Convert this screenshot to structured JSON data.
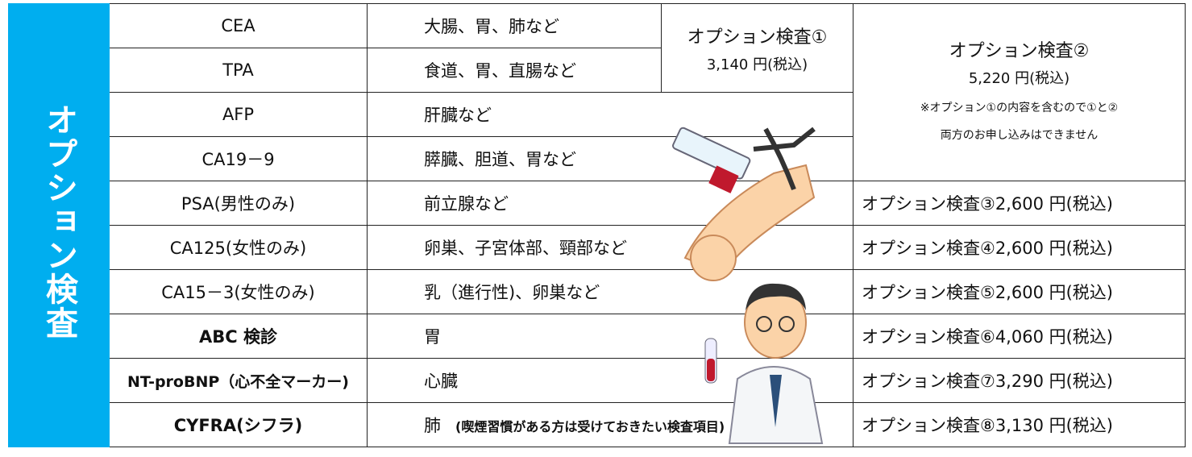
{
  "side_label": "オプション検査",
  "option1": {
    "title": "オプション検査①",
    "price": "3,140 円(税込)"
  },
  "option2": {
    "title": "オプション検査②",
    "price": "5,220 円(税込)",
    "note1": "※オプション①の内容を含むので①と②",
    "note2": "両方のお申し込みはできません"
  },
  "rows": [
    {
      "marker": "CEA",
      "organ": "大腸、胃、肺など"
    },
    {
      "marker": "TPA",
      "organ": "食道、胃、直腸など"
    },
    {
      "marker": "AFP",
      "organ": "肝臓など"
    },
    {
      "marker": "CA19－9",
      "organ": "膵臓、胆道、胃など"
    },
    {
      "marker": "PSA(男性のみ)",
      "organ": "前立腺など",
      "price": "オプション検査③2,600 円(税込)"
    },
    {
      "marker": "CA125(女性のみ)",
      "organ": "卵巣、子宮体部、頸部など",
      "price": "オプション検査④2,600 円(税込)"
    },
    {
      "marker": "CA15－3(女性のみ)",
      "organ": "乳（進行性)、卵巣など",
      "price": "オプション検査⑤2,600 円(税込)"
    },
    {
      "marker": "ABC 検診",
      "organ": "胃",
      "price": "オプション検査⑥4,060 円(税込)"
    },
    {
      "marker": "NT-proBNP（心不全マーカー)",
      "organ": "心臓",
      "price": "オプション検査⑦3,290 円(税込)"
    },
    {
      "marker": "CYFRA(シフラ)",
      "organ": "肺",
      "organ_note": "(喫煙習慣がある方は受けておきたい検査項目)",
      "price": "オプション検査⑧3,130 円(税込)"
    }
  ]
}
